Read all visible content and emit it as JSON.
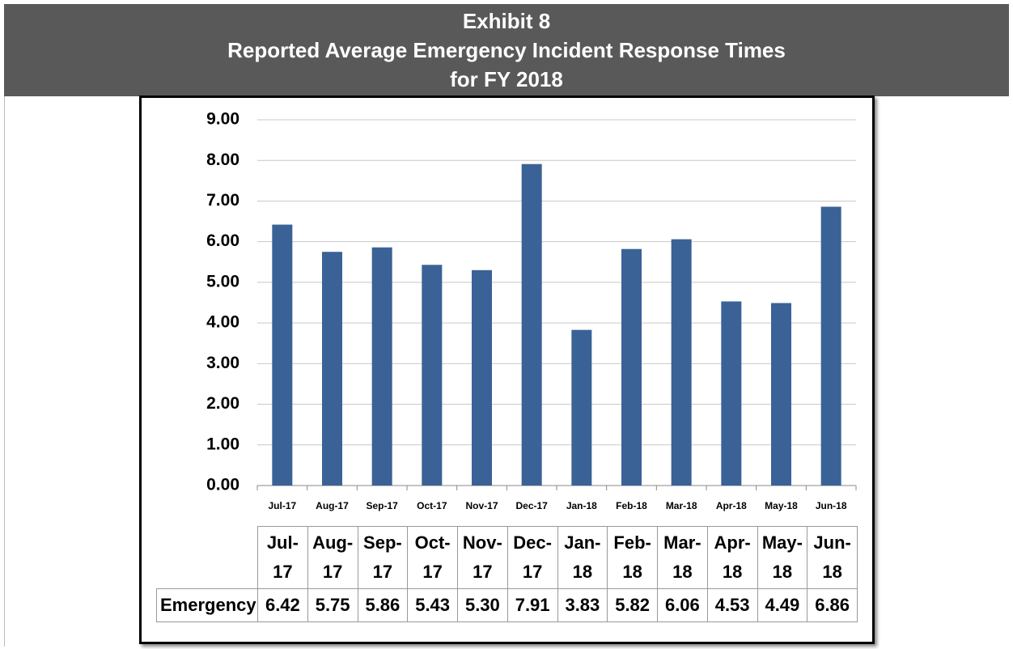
{
  "chart_data": {
    "type": "bar",
    "title": [
      "Exhibit  8",
      "Reported Average Emergency Incident Response Times",
      "for FY 2018"
    ],
    "categories": [
      "Jul-17",
      "Aug-17",
      "Sep-17",
      "Oct-17",
      "Nov-17",
      "Dec-17",
      "Jan-18",
      "Feb-18",
      "Mar-18",
      "Apr-18",
      "May-18",
      "Jun-18"
    ],
    "series": [
      {
        "name": "Emergency",
        "color": "#3a6296",
        "values": [
          6.42,
          5.75,
          5.86,
          5.43,
          5.3,
          7.91,
          3.83,
          5.82,
          6.06,
          4.53,
          4.49,
          6.86
        ],
        "value_labels": [
          "6.42",
          "5.75",
          "5.86",
          "5.43",
          "5.30",
          "7.91",
          "3.83",
          "5.82",
          "6.06",
          "4.53",
          "4.49",
          "6.86"
        ]
      }
    ],
    "ylim": [
      0,
      9
    ],
    "yticks": [
      {
        "value": 0,
        "label": "0.00"
      },
      {
        "value": 1,
        "label": "1.00"
      },
      {
        "value": 2,
        "label": "2.00"
      },
      {
        "value": 3,
        "label": "3.00"
      },
      {
        "value": 4,
        "label": "4.00"
      },
      {
        "value": 5,
        "label": "5.00"
      },
      {
        "value": 6,
        "label": "6.00"
      },
      {
        "value": 7,
        "label": "7.00"
      },
      {
        "value": 8,
        "label": "8.00"
      },
      {
        "value": 9,
        "label": "9.00"
      }
    ],
    "grid": true
  }
}
